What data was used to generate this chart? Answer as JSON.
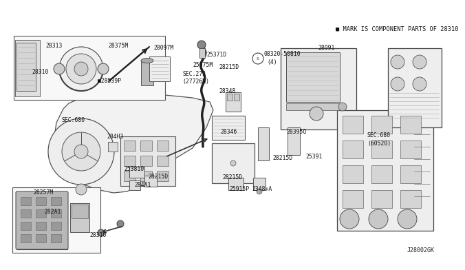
{
  "bg_color": "#ffffff",
  "fig_width": 6.4,
  "fig_height": 3.72,
  "diagram_code": "J28002GK",
  "header_note": "■ MARK IS COMPONENT PARTS OF 28310",
  "line_color": "#333333",
  "box_fill": "#ffffff",
  "box_edge": "#444444",
  "inset_fill": "#f8f8f8",
  "gray_fill": "#cccccc",
  "dark_gray": "#888888",
  "labels": [
    [
      "28313",
      55,
      62
    ],
    [
      "28310",
      38,
      92
    ],
    [
      "28375M",
      148,
      58
    ],
    [
      "28097M",
      213,
      62
    ],
    [
      "■28539P",
      138,
      105
    ],
    [
      "SEC.680",
      82,
      168
    ],
    [
      "25371D",
      290,
      72
    ],
    [
      "25975M",
      278,
      90
    ],
    [
      "SEC.272",
      264,
      104
    ],
    [
      "(27726N)",
      262,
      116
    ],
    [
      "28215D",
      311,
      90
    ],
    [
      "28348",
      318,
      136
    ],
    [
      "28346",
      318,
      183
    ],
    [
      "28215D",
      322,
      248
    ],
    [
      "25915P",
      330,
      262
    ],
    [
      "2348+A",
      362,
      262
    ],
    [
      "08320-50810",
      369,
      68
    ],
    [
      "(4)",
      373,
      80
    ],
    [
      "28091",
      452,
      62
    ],
    [
      "28395Q",
      418,
      182
    ],
    [
      "28215D",
      396,
      220
    ],
    [
      "SEC.680",
      530,
      188
    ],
    [
      "(60520)",
      530,
      200
    ],
    [
      "25391",
      435,
      218
    ],
    [
      "284H3",
      152,
      188
    ],
    [
      "253810",
      177,
      238
    ],
    [
      "284A1",
      195,
      258
    ],
    [
      "28215D",
      218,
      245
    ],
    [
      "28257M",
      42,
      272
    ],
    [
      "282A1",
      58,
      298
    ],
    [
      "28310",
      125,
      330
    ]
  ]
}
